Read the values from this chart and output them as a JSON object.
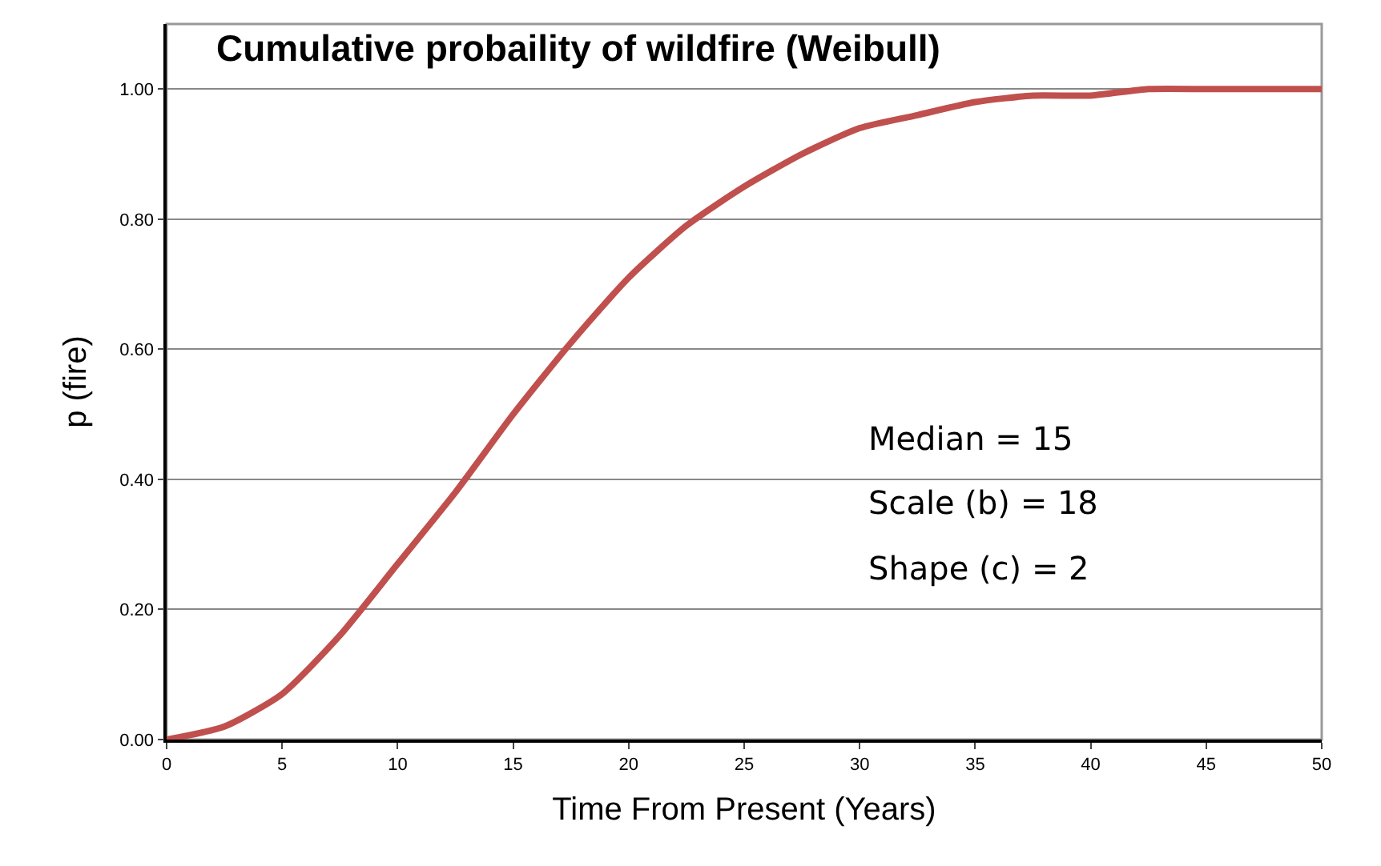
{
  "chart_data": {
    "type": "line",
    "title": "Cumulative probaility of wildfire (Weibull)",
    "xlabel": "Time From Present (Years)",
    "ylabel": "p (fire)",
    "x": [
      0,
      2.5,
      5,
      7.5,
      10,
      12.5,
      15,
      17.5,
      20,
      22.5,
      25,
      27.5,
      30,
      32.5,
      35,
      37.5,
      40,
      42.5,
      45,
      47.5,
      50
    ],
    "series": [
      {
        "color": "#c0504d",
        "values": [
          0,
          0.02,
          0.07,
          0.16,
          0.27,
          0.38,
          0.5,
          0.61,
          0.71,
          0.79,
          0.85,
          0.9,
          0.94,
          0.96,
          0.98,
          0.99,
          0.99,
          1.0,
          1.0,
          1.0,
          1.0
        ]
      }
    ],
    "xlim": [
      0,
      50
    ],
    "xticks": [
      0,
      5,
      10,
      15,
      20,
      25,
      30,
      35,
      40,
      45,
      50
    ],
    "ylim": [
      0,
      1.1
    ],
    "yticks": [
      {
        "value": 0,
        "label": "0.00"
      },
      {
        "value": 0.2,
        "label": "0.20"
      },
      {
        "value": 0.4,
        "label": "0.40"
      },
      {
        "value": 0.6,
        "label": "0.60"
      },
      {
        "value": 0.8,
        "label": "0.80"
      },
      {
        "value": 1.0,
        "label": "1.00"
      }
    ],
    "annotations": [
      "Median = 15",
      "Scale (b) = 18",
      "Shape (c) = 2"
    ],
    "grid": "y",
    "legend": false,
    "marker": "none",
    "line_style": "solid"
  }
}
